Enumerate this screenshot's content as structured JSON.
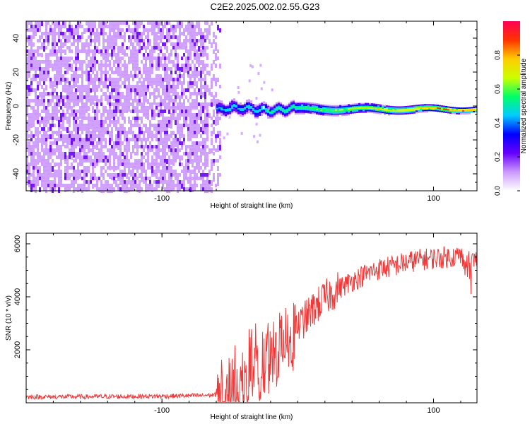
{
  "title": "C2E2.2025.002.02.55.G23",
  "chart_data": [
    {
      "type": "heatmap",
      "xlabel": "Height of straight line (km)",
      "ylabel": "Frequency (Hz)",
      "xlim": [
        -200,
        132
      ],
      "ylim": [
        -50,
        50
      ],
      "xticks": [
        -100,
        100
      ],
      "yticks": [
        -40,
        -20,
        0,
        20,
        40
      ],
      "colorbar": {
        "label": "Normalized spectral amplitude",
        "ticks": [
          "0.0",
          "0.2",
          "0.4",
          "0.6",
          "0.8"
        ],
        "range": [
          0,
          1
        ],
        "colors": [
          "#ffffff",
          "#cc99ff",
          "#6600ff",
          "#0000ff",
          "#00ccff",
          "#00ff66",
          "#ccff00",
          "#ffcc00",
          "#ff3300",
          "#ff0055"
        ]
      },
      "features": {
        "noise_region_x": [
          -200,
          -57
        ],
        "signal_trace": {
          "x_start": -60,
          "x_end": 132,
          "center_freq": -1.5,
          "strength_increases_with_x": true
        }
      }
    },
    {
      "type": "line",
      "xlabel": "Height of straight line (km)",
      "ylabel": "SNR (10 * v/v)",
      "xlim": [
        -200,
        132
      ],
      "ylim": [
        0,
        6400
      ],
      "xticks": [
        -100,
        100
      ],
      "yticks": [
        2000,
        4000,
        6000
      ],
      "series": [
        {
          "color": "#f03838",
          "x": [
            -200,
            -150,
            -100,
            -75,
            -60,
            -52,
            -45,
            -40,
            -35,
            -30,
            -25,
            -20,
            -15,
            -10,
            -5,
            0,
            10,
            20,
            30,
            40,
            50,
            60,
            70,
            80,
            90,
            100,
            110,
            120,
            125,
            130
          ],
          "values": [
            220,
            230,
            250,
            270,
            300,
            520,
            1050,
            1350,
            1450,
            1650,
            1750,
            1950,
            2200,
            2450,
            2650,
            2850,
            3450,
            3950,
            4300,
            4600,
            4850,
            5050,
            5150,
            5300,
            5400,
            5450,
            5500,
            5550,
            5300,
            5400
          ]
        }
      ]
    }
  ]
}
